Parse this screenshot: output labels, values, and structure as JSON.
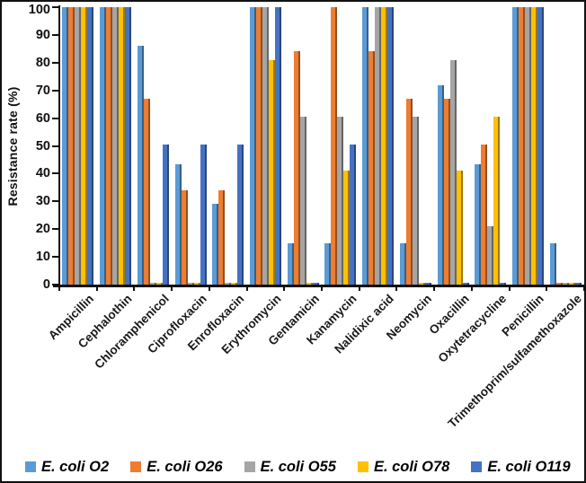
{
  "window": {
    "background": "#ffffff",
    "border_color": "#111111"
  },
  "chart_data": {
    "type": "bar",
    "title": "",
    "xlabel": "",
    "ylabel": "Resistance rate (%)",
    "ylim": [
      0,
      100
    ],
    "yticks": [
      0,
      10,
      20,
      30,
      40,
      50,
      60,
      70,
      80,
      90,
      100
    ],
    "grid": false,
    "legend_position": "bottom",
    "categories": [
      "Ampicillin",
      "Cephalothin",
      "Chloramphenicol",
      "Ciprofloxacin",
      "Enrofloxacin",
      "Erythromycin",
      "Gentamicin",
      "Kanamycin",
      "Nalidixic acid",
      "Neomycin",
      "Oxacillin",
      "Oxytetracycline",
      "Penicillin",
      "Trimethoprim/sulfamethoxazole"
    ],
    "series": [
      {
        "name": "E. coli O2",
        "color": "#5B9BD5",
        "values": [
          100,
          100,
          86,
          43.5,
          29,
          100,
          15,
          15,
          100,
          15,
          72,
          43.5,
          100,
          15
        ]
      },
      {
        "name": "E. coli O26",
        "color": "#ED7D31",
        "values": [
          100,
          100,
          67,
          34,
          34,
          100,
          84,
          100,
          84,
          67,
          67,
          50.5,
          100,
          0.5
        ]
      },
      {
        "name": "E. coli O55",
        "color": "#A5A5A5",
        "values": [
          100,
          100,
          0.5,
          0.5,
          0.5,
          100,
          60.5,
          60.5,
          100,
          60.5,
          81,
          21,
          100,
          0.5
        ]
      },
      {
        "name": "E. coli O78",
        "color": "#FFC000",
        "values": [
          100,
          100,
          0.5,
          0.5,
          0.5,
          81,
          0.5,
          41,
          100,
          0.5,
          41,
          60.5,
          100,
          0.5
        ]
      },
      {
        "name": "E. coli O119",
        "color": "#4472C4",
        "values": [
          100,
          100,
          50.5,
          50.5,
          50.5,
          100,
          0.5,
          50.5,
          100,
          0.5,
          0.5,
          0.5,
          100,
          0.5
        ]
      }
    ]
  }
}
